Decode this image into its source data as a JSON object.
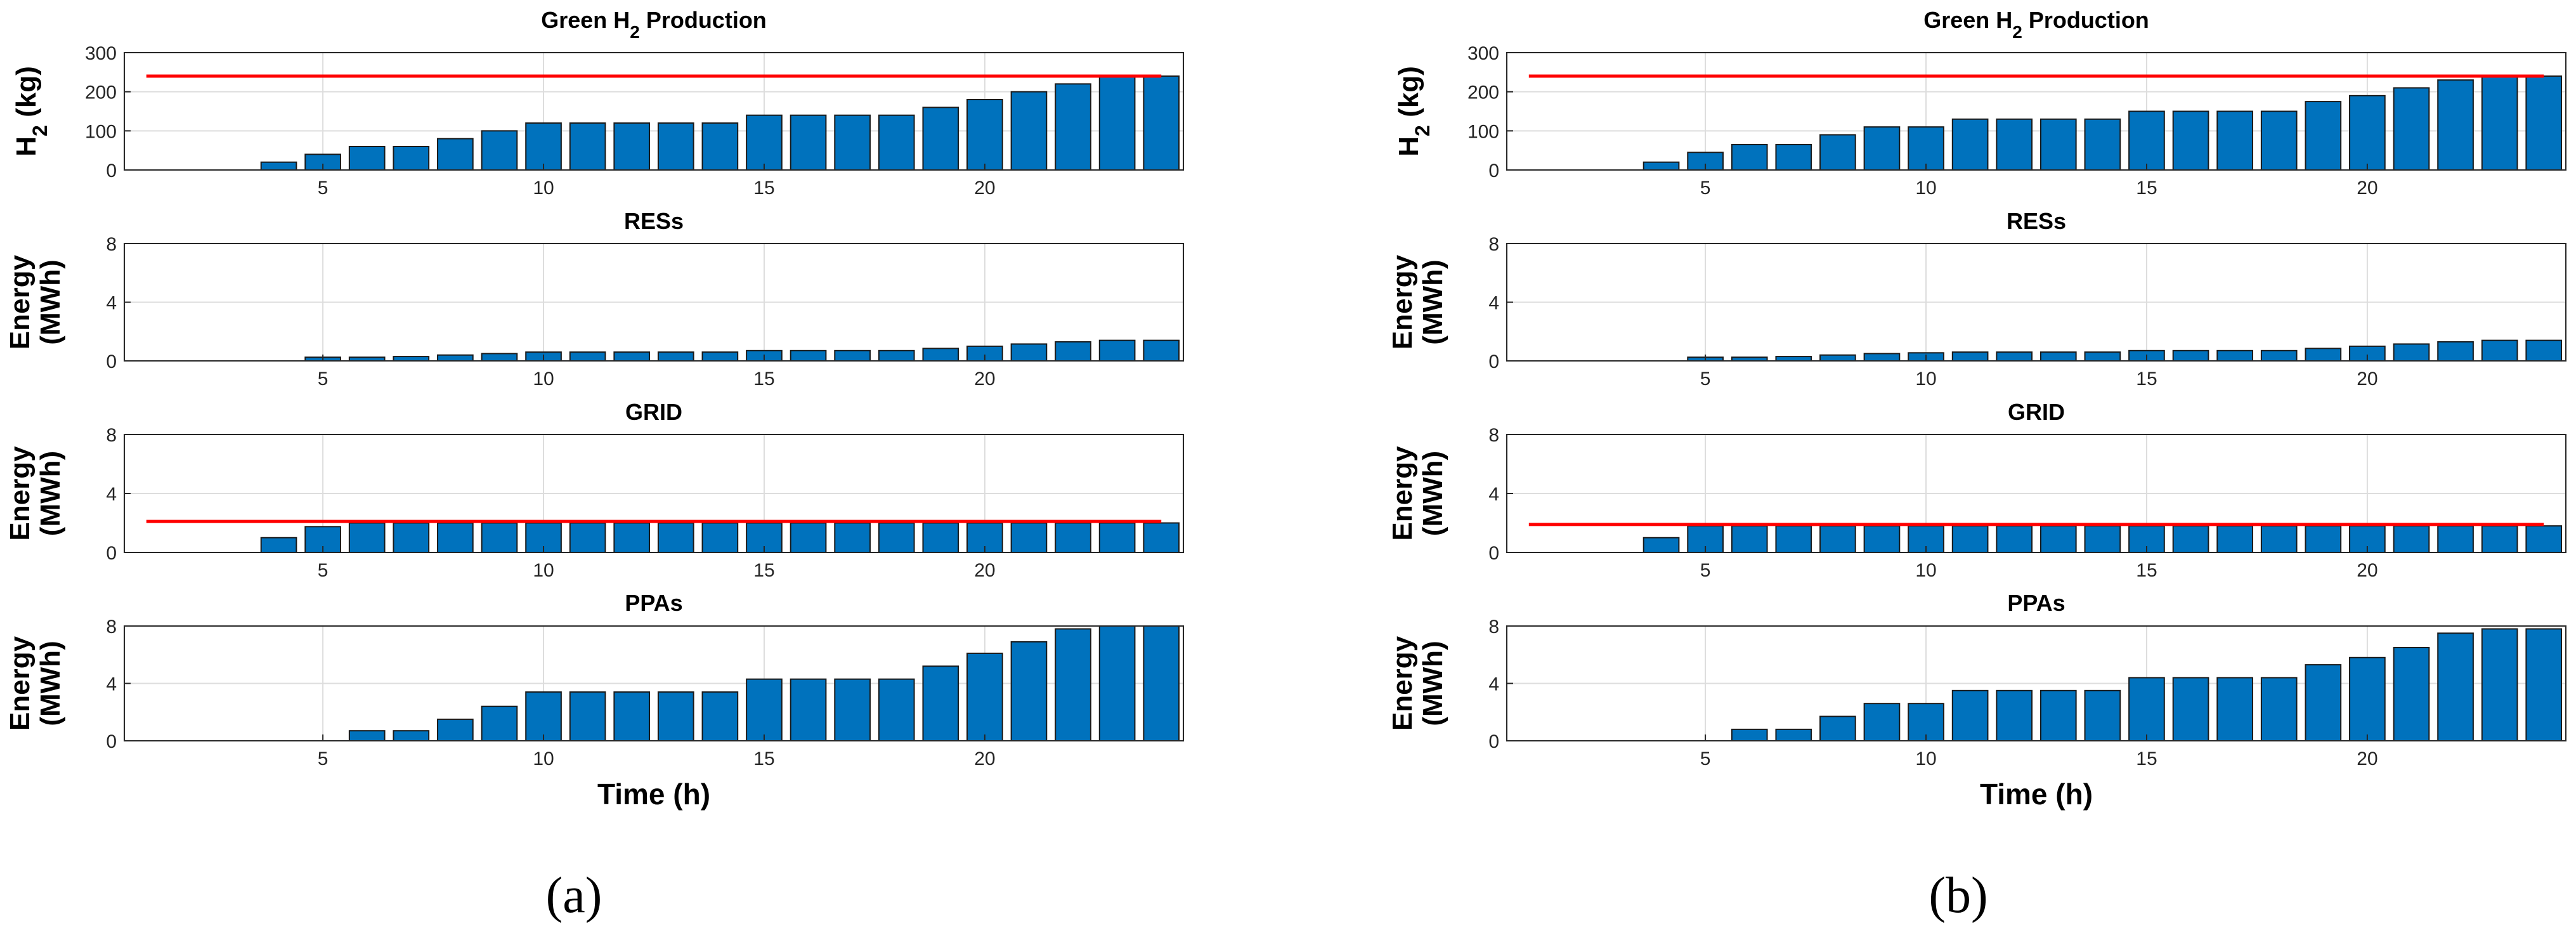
{
  "chart_data": [
    {
      "caption": "(a)",
      "type": "bar",
      "xlabel": "Time (h)",
      "xlim": [
        0.5,
        24.5
      ],
      "xticks": [
        5,
        10,
        15,
        20
      ],
      "x": [
        1,
        2,
        3,
        4,
        5,
        6,
        7,
        8,
        9,
        10,
        11,
        12,
        13,
        14,
        15,
        16,
        17,
        18,
        19,
        20,
        21,
        22,
        23,
        24
      ],
      "subplots": [
        {
          "title": "Green H",
          "title_sub": "2",
          "title_tail": " Production",
          "ylabel": "H",
          "ylabel_sub": "2",
          "ylabel_tail": " (kg)",
          "ylim": [
            0,
            300
          ],
          "yticks": [
            "0",
            "100",
            "200",
            "300"
          ],
          "values": [
            0,
            0,
            0,
            20,
            40,
            60,
            60,
            80,
            100,
            120,
            120,
            120,
            120,
            120,
            140,
            140,
            140,
            140,
            160,
            180,
            200,
            220,
            240,
            240
          ],
          "limit": {
            "value": 240,
            "x_start": 1,
            "x_end": 24,
            "color": "#ff0000"
          }
        },
        {
          "title": "RESs",
          "ylabel_line1": "Energy",
          "ylabel_line2": "(MWh)",
          "ylim": [
            0,
            8
          ],
          "yticks": [
            "0",
            "4",
            "8"
          ],
          "values": [
            0,
            0,
            0,
            0,
            0.25,
            0.25,
            0.3,
            0.4,
            0.5,
            0.6,
            0.6,
            0.6,
            0.6,
            0.6,
            0.7,
            0.7,
            0.7,
            0.7,
            0.85,
            1.0,
            1.15,
            1.3,
            1.4,
            1.4
          ]
        },
        {
          "title": "GRID",
          "ylabel_line1": "Energy",
          "ylabel_line2": "(MWh)",
          "ylim": [
            0,
            8
          ],
          "yticks": [
            "0",
            "4",
            "8"
          ],
          "values": [
            0,
            0,
            0,
            1.0,
            1.75,
            2.0,
            2.0,
            2.0,
            2.0,
            2.0,
            2.0,
            2.0,
            2.0,
            2.0,
            2.0,
            2.0,
            2.0,
            2.0,
            2.0,
            2.0,
            2.0,
            2.0,
            2.0,
            2.0
          ],
          "limit": {
            "value": 2.1,
            "x_start": 1,
            "x_end": 24,
            "color": "#ff0000"
          }
        },
        {
          "title": "PPAs",
          "ylabel_line1": "Energy",
          "ylabel_line2": "(MWh)",
          "ylim": [
            0,
            8
          ],
          "yticks": [
            "0",
            "4",
            "8"
          ],
          "values": [
            0,
            0,
            0,
            0,
            0,
            0.7,
            0.7,
            1.5,
            2.4,
            3.4,
            3.4,
            3.4,
            3.4,
            3.4,
            4.3,
            4.3,
            4.3,
            4.3,
            5.2,
            6.1,
            6.9,
            7.8,
            8.0,
            8.0
          ]
        }
      ]
    },
    {
      "caption": "(b)",
      "type": "bar",
      "xlabel": "Time (h)",
      "xlim": [
        0.5,
        24.5
      ],
      "xticks": [
        5,
        10,
        15,
        20
      ],
      "x": [
        1,
        2,
        3,
        4,
        5,
        6,
        7,
        8,
        9,
        10,
        11,
        12,
        13,
        14,
        15,
        16,
        17,
        18,
        19,
        20,
        21,
        22,
        23,
        24
      ],
      "subplots": [
        {
          "title": "Green H",
          "title_sub": "2",
          "title_tail": " Production",
          "ylabel": "H",
          "ylabel_sub": "2",
          "ylabel_tail": " (kg)",
          "ylim": [
            0,
            300
          ],
          "yticks": [
            "0",
            "100",
            "200",
            "300"
          ],
          "values": [
            0,
            0,
            0,
            20,
            45,
            65,
            65,
            90,
            110,
            110,
            130,
            130,
            130,
            130,
            150,
            150,
            150,
            150,
            175,
            190,
            210,
            230,
            240,
            240
          ],
          "limit": {
            "value": 240,
            "x_start": 1,
            "x_end": 24,
            "color": "#ff0000"
          }
        },
        {
          "title": "RESs",
          "ylabel_line1": "Energy",
          "ylabel_line2": "(MWh)",
          "ylim": [
            0,
            8
          ],
          "yticks": [
            "0",
            "4",
            "8"
          ],
          "values": [
            0,
            0,
            0,
            0,
            0.25,
            0.25,
            0.3,
            0.4,
            0.5,
            0.55,
            0.6,
            0.6,
            0.6,
            0.6,
            0.7,
            0.7,
            0.7,
            0.7,
            0.85,
            1.0,
            1.15,
            1.3,
            1.4,
            1.4
          ]
        },
        {
          "title": "GRID",
          "ylabel_line1": "Energy",
          "ylabel_line2": "(MWh)",
          "ylim": [
            0,
            8
          ],
          "yticks": [
            "0",
            "4",
            "8"
          ],
          "values": [
            0,
            0,
            0,
            1.0,
            1.8,
            1.8,
            1.8,
            1.8,
            1.8,
            1.8,
            1.8,
            1.8,
            1.8,
            1.8,
            1.8,
            1.8,
            1.8,
            1.8,
            1.8,
            1.8,
            1.8,
            1.8,
            1.8,
            1.8
          ],
          "limit": {
            "value": 1.9,
            "x_start": 1,
            "x_end": 24,
            "color": "#ff0000"
          }
        },
        {
          "title": "PPAs",
          "ylabel_line1": "Energy",
          "ylabel_line2": "(MWh)",
          "ylim": [
            0,
            8
          ],
          "yticks": [
            "0",
            "4",
            "8"
          ],
          "values": [
            0,
            0,
            0,
            0,
            0,
            0.8,
            0.8,
            1.7,
            2.6,
            2.6,
            3.5,
            3.5,
            3.5,
            3.5,
            4.4,
            4.4,
            4.4,
            4.4,
            5.3,
            5.8,
            6.5,
            7.5,
            7.8,
            7.8
          ]
        }
      ]
    }
  ],
  "colors": {
    "bar_fill": "#0072bd",
    "bar_edge": "#1a1a1a",
    "limit_line": "#ff0000",
    "grid": "#dddddd",
    "axis": "#262626"
  }
}
